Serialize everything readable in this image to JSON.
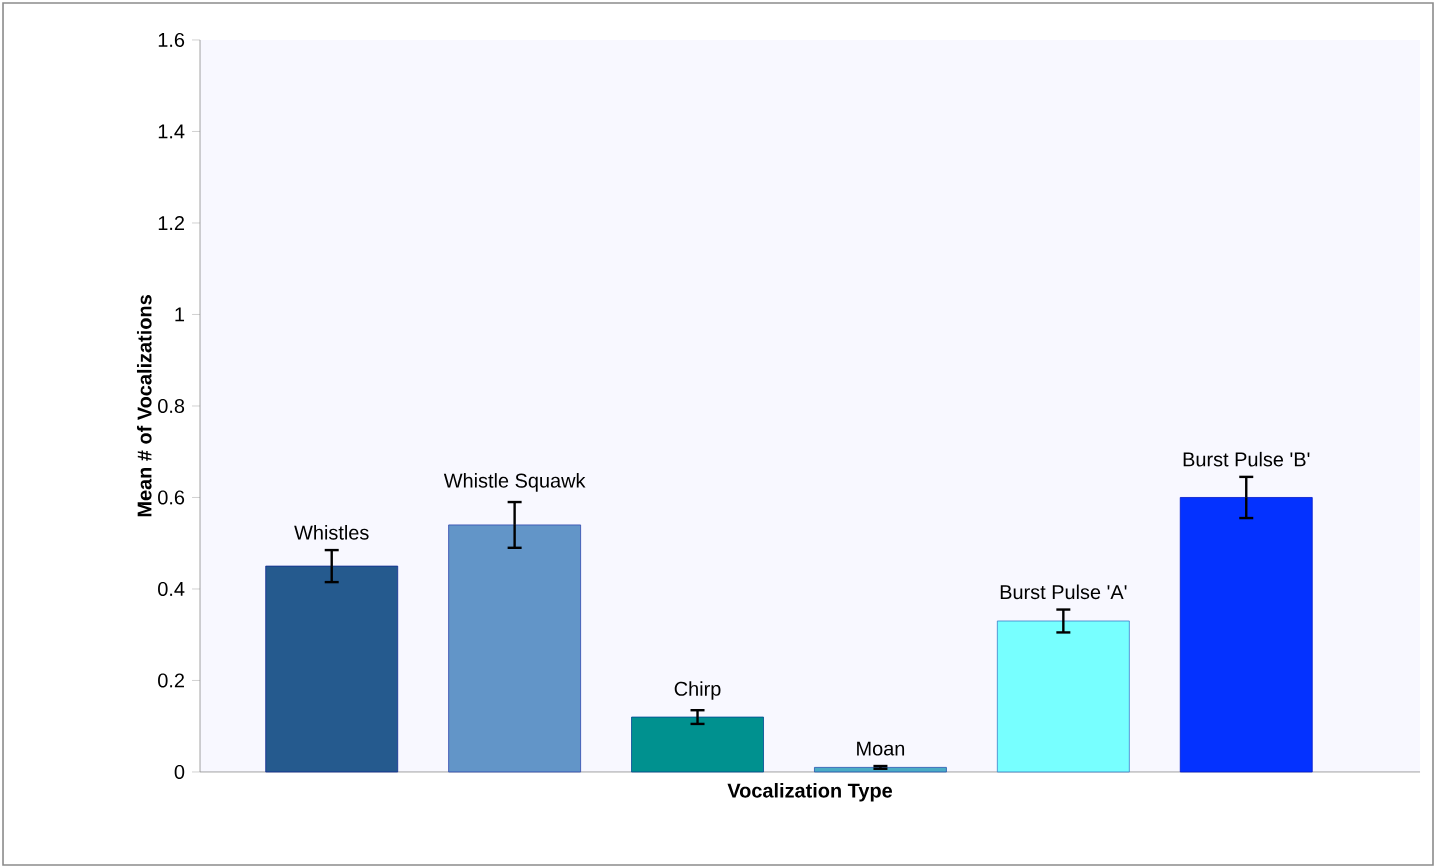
{
  "chart_data": {
    "type": "bar",
    "xlabel": "Vocalization Type",
    "ylabel": "Mean # of Vocalizations",
    "categories": [
      "Whistles",
      "Whistle Squawk",
      "Chirp",
      "Moan",
      "Burst Pulse 'A'",
      "Burst Pulse 'B'"
    ],
    "values": [
      0.45,
      0.54,
      0.12,
      0.01,
      0.33,
      0.6
    ],
    "errors": [
      0.035,
      0.05,
      0.015,
      0.003,
      0.025,
      0.045
    ],
    "colors": [
      "#255a8e",
      "#6295c8",
      "#00918f",
      "#4bacc6",
      "#77ffff",
      "#0432ff"
    ],
    "ylim": [
      0,
      1.6
    ],
    "yticks": [
      0,
      0.2,
      0.4,
      0.6,
      0.8,
      1,
      1.2,
      1.4,
      1.6
    ],
    "grid": false
  }
}
